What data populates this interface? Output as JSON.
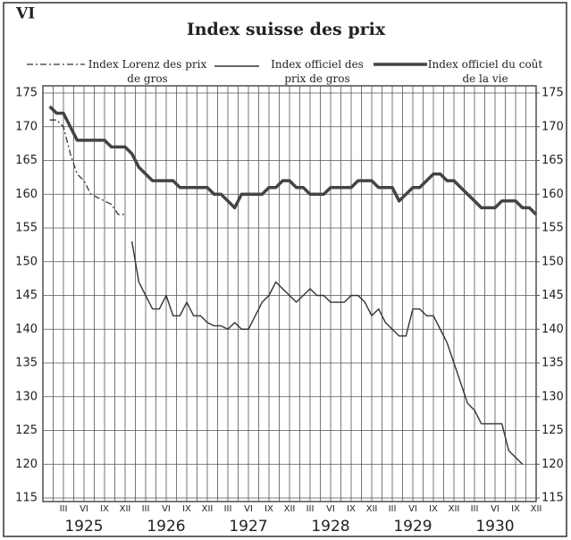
{
  "chart_data": {
    "type": "line",
    "panel_label": "VI",
    "title": "Index suisse des prix",
    "categories": [
      null,
      null,
      "III",
      null,
      null,
      "VI",
      null,
      null,
      "IX",
      null,
      null,
      "XII",
      null,
      null,
      "III",
      null,
      null,
      "VI",
      null,
      null,
      "IX",
      null,
      null,
      "XII",
      null,
      null,
      "III",
      null,
      null,
      "VI",
      null,
      null,
      "IX",
      null,
      null,
      "XII",
      null,
      null,
      "III",
      null,
      null,
      "VI",
      null,
      null,
      "IX",
      null,
      null,
      "XII",
      null,
      null,
      "III",
      null,
      null,
      "VI",
      null,
      null,
      "IX",
      null,
      null,
      "XII",
      null,
      null,
      "III",
      null,
      null,
      "VI",
      null,
      null,
      "IX",
      null,
      null,
      "XII"
    ],
    "year_labels": [
      "1925",
      "1926",
      "1927",
      "1928",
      "1929",
      "1930"
    ],
    "ylim": [
      115,
      175
    ],
    "yticks": [
      115,
      120,
      125,
      130,
      135,
      140,
      145,
      150,
      155,
      160,
      165,
      170,
      175
    ],
    "y2lim": [
      115,
      175
    ],
    "y2ticks": [
      115,
      120,
      125,
      130,
      135,
      140,
      145,
      150,
      155,
      160,
      165,
      170,
      175
    ],
    "grid": true,
    "series": [
      {
        "name": "Index Lorenz des prix de gros",
        "color": "#333",
        "dash": "dashdot",
        "width": 1.3,
        "values": [
          171,
          171,
          170,
          166,
          163,
          162,
          160,
          159.5,
          159,
          158.5,
          157,
          157,
          null,
          null,
          null,
          null,
          null,
          null,
          null,
          null,
          null,
          null,
          null,
          null,
          null,
          null,
          null,
          null,
          null,
          null,
          null,
          null,
          null,
          null,
          null,
          null,
          null,
          null,
          null,
          null,
          null,
          null,
          null,
          null,
          null,
          null,
          null,
          null,
          null,
          null,
          null,
          null,
          null,
          null,
          null,
          null,
          null,
          null,
          null,
          null,
          null,
          null,
          null,
          null,
          null,
          null,
          null,
          null,
          null,
          null,
          null,
          null
        ]
      },
      {
        "name": "Index officiel des prix de gros",
        "color": "#333",
        "dash": "solid",
        "width": 1.4,
        "values": [
          null,
          null,
          null,
          null,
          null,
          null,
          null,
          null,
          null,
          null,
          null,
          null,
          153,
          147,
          145,
          143,
          143,
          145,
          142,
          142,
          144,
          142,
          142,
          141,
          140.5,
          140.5,
          140,
          141,
          140,
          140,
          142,
          144,
          145,
          147,
          146,
          145,
          144,
          145,
          146,
          145,
          145,
          144,
          144,
          144,
          145,
          145,
          144,
          142,
          143,
          141,
          140,
          139,
          139,
          143,
          143,
          142,
          142,
          140,
          138,
          135,
          132,
          129,
          128,
          126,
          126,
          126,
          126,
          122,
          121,
          120,
          null,
          null
        ]
      },
      {
        "name": "Index officiel du coût de la vie",
        "color": "#444",
        "dash": "solid",
        "width": 3.5,
        "values": [
          173,
          172,
          172,
          170,
          168,
          168,
          168,
          168,
          168,
          167,
          167,
          167,
          166,
          164,
          163,
          162,
          162,
          162,
          162,
          161,
          161,
          161,
          161,
          161,
          160,
          160,
          159,
          158,
          160,
          160,
          160,
          160,
          161,
          161,
          162,
          162,
          161,
          161,
          160,
          160,
          160,
          161,
          161,
          161,
          161,
          162,
          162,
          162,
          161,
          161,
          161,
          159,
          160,
          161,
          161,
          162,
          163,
          163,
          162,
          162,
          161,
          160,
          159,
          158,
          158,
          158,
          159,
          159,
          159,
          158,
          158,
          157
        ]
      }
    ]
  }
}
